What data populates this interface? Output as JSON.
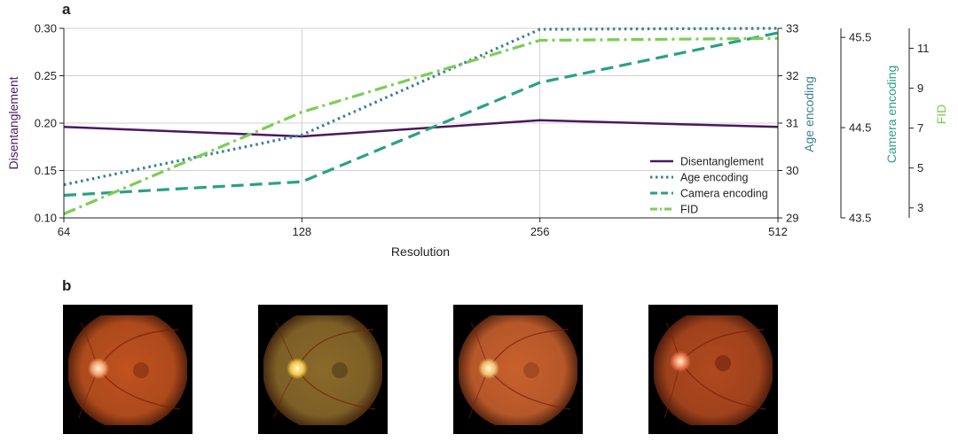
{
  "panels": {
    "a": "a",
    "b": "b"
  },
  "chart_data": {
    "type": "line",
    "xlabel": "Resolution",
    "x": [
      "64",
      "128",
      "256",
      "512"
    ],
    "grid": true,
    "legend_position": "lower-right",
    "axes": [
      {
        "id": "disentanglement",
        "ylabel": "Disentanglement",
        "ylim": [
          0.1,
          0.3
        ],
        "ticks": [
          "0.10",
          "0.15",
          "0.20",
          "0.25",
          "0.30"
        ],
        "tick_values": [
          0.1,
          0.15,
          0.2,
          0.25,
          0.3
        ],
        "side": "left",
        "color": "#4a1860"
      },
      {
        "id": "age",
        "ylabel": "Age encoding",
        "ylim": [
          29,
          33
        ],
        "ticks": [
          "29",
          "30",
          "31",
          "32",
          "33"
        ],
        "tick_values": [
          29,
          30,
          31,
          32,
          33
        ],
        "side": "right",
        "color": "#3b7f96"
      },
      {
        "id": "camera",
        "ylabel": "Camera encoding",
        "ylim": [
          43.5,
          45.6
        ],
        "ticks": [
          "43.5",
          "44.5",
          "45.5"
        ],
        "tick_values": [
          43.5,
          44.5,
          45.5
        ],
        "side": "right",
        "color": "#2e9f8a"
      },
      {
        "id": "fid",
        "ylabel": "FID",
        "ylim": [
          2.5,
          12
        ],
        "ticks": [
          "3",
          "5",
          "7",
          "9",
          "11"
        ],
        "tick_values": [
          3,
          5,
          7,
          9,
          11
        ],
        "side": "right",
        "color": "#7cc850"
      }
    ],
    "series": [
      {
        "name": "Disentanglement",
        "axis": "disentanglement",
        "style": "solid",
        "color": "#4a1860",
        "values": [
          0.196,
          0.186,
          0.203,
          0.196
        ]
      },
      {
        "name": "Age encoding",
        "axis": "age",
        "style": "dotted",
        "color": "#3b7f96",
        "values": [
          29.7,
          30.75,
          32.98,
          33.0
        ]
      },
      {
        "name": "Camera encoding",
        "axis": "camera",
        "style": "dashed",
        "color": "#2aa085",
        "values": [
          43.75,
          43.9,
          45.0,
          45.55
        ]
      },
      {
        "name": "FID",
        "axis": "fid",
        "style": "dashdot",
        "color": "#7ccd57",
        "values": [
          2.7,
          7.8,
          11.4,
          11.5
        ]
      }
    ]
  },
  "images": [
    {
      "name": "fundus-image-1",
      "tone": "#c0521f",
      "disc": "#f2a070",
      "macula": "#7a2810"
    },
    {
      "name": "fundus-image-2",
      "tone": "#8a6a2a",
      "disc": "#f3c844",
      "macula": "#4a3518"
    },
    {
      "name": "fundus-image-3",
      "tone": "#c9612e",
      "disc": "#f0c070",
      "macula": "#8a3a18"
    },
    {
      "name": "fundus-image-4",
      "tone": "#b0491f",
      "disc": "#ef7a50",
      "macula": "#6a1e0e"
    }
  ]
}
